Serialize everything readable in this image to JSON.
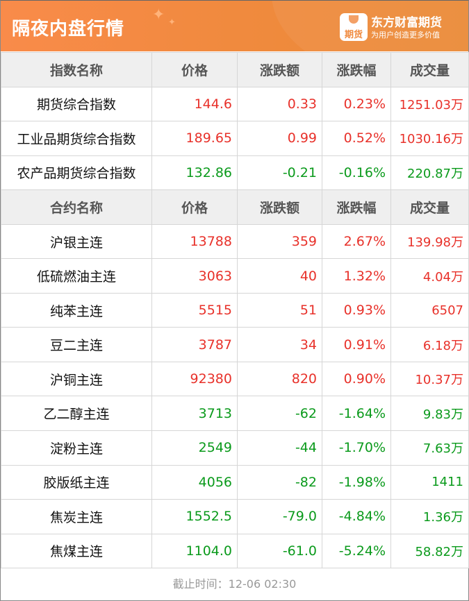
{
  "header": {
    "title": "隔夜内盘行情",
    "brand": "东方财富期货",
    "slogan": "为用户创造更多价值",
    "logo_text": "期货"
  },
  "colors": {
    "up": "#e8312a",
    "down": "#0a9a1b",
    "banner": "#f08a3e"
  },
  "index_table": {
    "columns": [
      "指数名称",
      "价格",
      "涨跌额",
      "涨跌幅",
      "成交量"
    ],
    "rows": [
      {
        "name": "期货综合指数",
        "price": "144.6",
        "change": "0.33",
        "pct": "0.23%",
        "volume": "1251.03万",
        "dir": "up"
      },
      {
        "name": "工业品期货综合指数",
        "price": "189.65",
        "change": "0.99",
        "pct": "0.52%",
        "volume": "1030.16万",
        "dir": "up"
      },
      {
        "name": "农产品期货综合指数",
        "price": "132.86",
        "change": "-0.21",
        "pct": "-0.16%",
        "volume": "220.87万",
        "dir": "down"
      }
    ]
  },
  "contract_table": {
    "columns": [
      "合约名称",
      "价格",
      "涨跌额",
      "涨跌幅",
      "成交量"
    ],
    "rows": [
      {
        "name": "沪银主连",
        "price": "13788",
        "change": "359",
        "pct": "2.67%",
        "volume": "139.98万",
        "dir": "up"
      },
      {
        "name": "低硫燃油主连",
        "price": "3063",
        "change": "40",
        "pct": "1.32%",
        "volume": "4.04万",
        "dir": "up"
      },
      {
        "name": "纯苯主连",
        "price": "5515",
        "change": "51",
        "pct": "0.93%",
        "volume": "6507",
        "dir": "up"
      },
      {
        "name": "豆二主连",
        "price": "3787",
        "change": "34",
        "pct": "0.91%",
        "volume": "6.18万",
        "dir": "up"
      },
      {
        "name": "沪铜主连",
        "price": "92380",
        "change": "820",
        "pct": "0.90%",
        "volume": "10.37万",
        "dir": "up"
      },
      {
        "name": "乙二醇主连",
        "price": "3713",
        "change": "-62",
        "pct": "-1.64%",
        "volume": "9.83万",
        "dir": "down"
      },
      {
        "name": "淀粉主连",
        "price": "2549",
        "change": "-44",
        "pct": "-1.70%",
        "volume": "7.63万",
        "dir": "down"
      },
      {
        "name": "胶版纸主连",
        "price": "4056",
        "change": "-82",
        "pct": "-1.98%",
        "volume": "1411",
        "dir": "down"
      },
      {
        "name": "焦炭主连",
        "price": "1552.5",
        "change": "-79.0",
        "pct": "-4.84%",
        "volume": "1.36万",
        "dir": "down"
      },
      {
        "name": "焦煤主连",
        "price": "1104.0",
        "change": "-61.0",
        "pct": "-5.24%",
        "volume": "58.82万",
        "dir": "down"
      }
    ]
  },
  "footer": {
    "cutoff": "截止时间：12-06 02:30"
  }
}
